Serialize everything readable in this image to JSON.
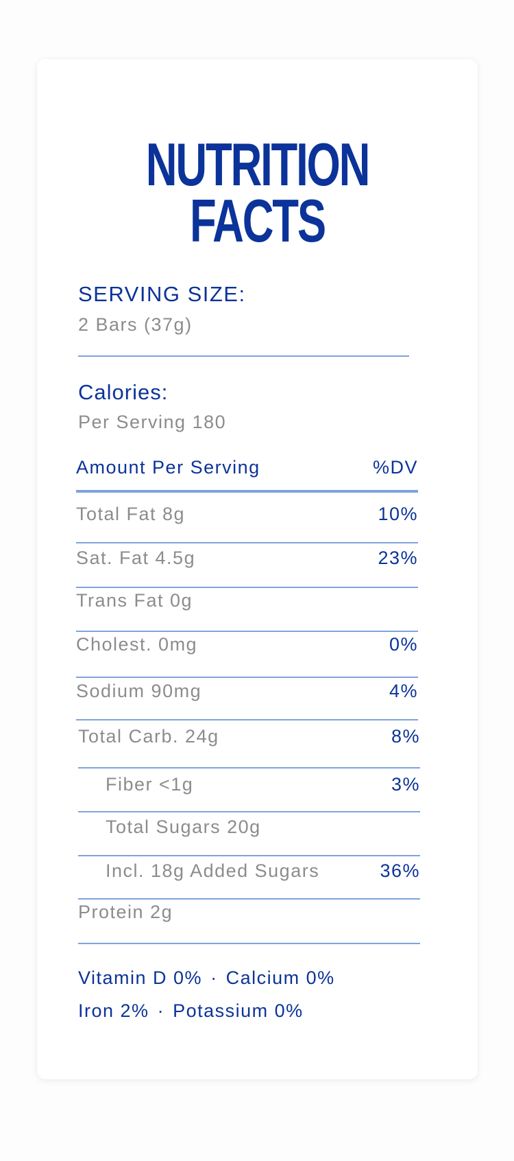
{
  "title": {
    "line1": "NUTRITION",
    "line2": "FACTS"
  },
  "serving": {
    "label": "SERVING SIZE:",
    "value": "2 Bars (37g)"
  },
  "calories": {
    "label": "Calories:",
    "value": "Per Serving 180"
  },
  "table": {
    "header_amount": "Amount Per Serving",
    "header_dv": "%DV",
    "rows": [
      {
        "name": "Total Fat 8g",
        "dv": "10%"
      },
      {
        "name": "Sat. Fat 4.5g",
        "dv": "23%"
      },
      {
        "name": "Trans Fat 0g",
        "dv": ""
      },
      {
        "name": "Cholest. 0mg",
        "dv": "0%"
      },
      {
        "name": "Sodium 90mg",
        "dv": "4%"
      },
      {
        "name": "Total Carb. 24g",
        "dv": "8%"
      },
      {
        "name": "Fiber <1g",
        "dv": "3%"
      },
      {
        "name": "Total Sugars 20g",
        "dv": ""
      },
      {
        "name": "Incl. 18g Added Sugars",
        "dv": "36%"
      },
      {
        "name": "Protein 2g",
        "dv": ""
      }
    ]
  },
  "vitamins": {
    "vitamin_d": "Vitamin D 0%",
    "calcium": "Calcium 0%",
    "iron": "Iron 2%",
    "potassium": "Potassium 0%",
    "separator": "·"
  },
  "colors": {
    "primary_blue": "#0b3399",
    "text_gray": "#8c8c8c",
    "line_blue": "#7fa3dc"
  }
}
